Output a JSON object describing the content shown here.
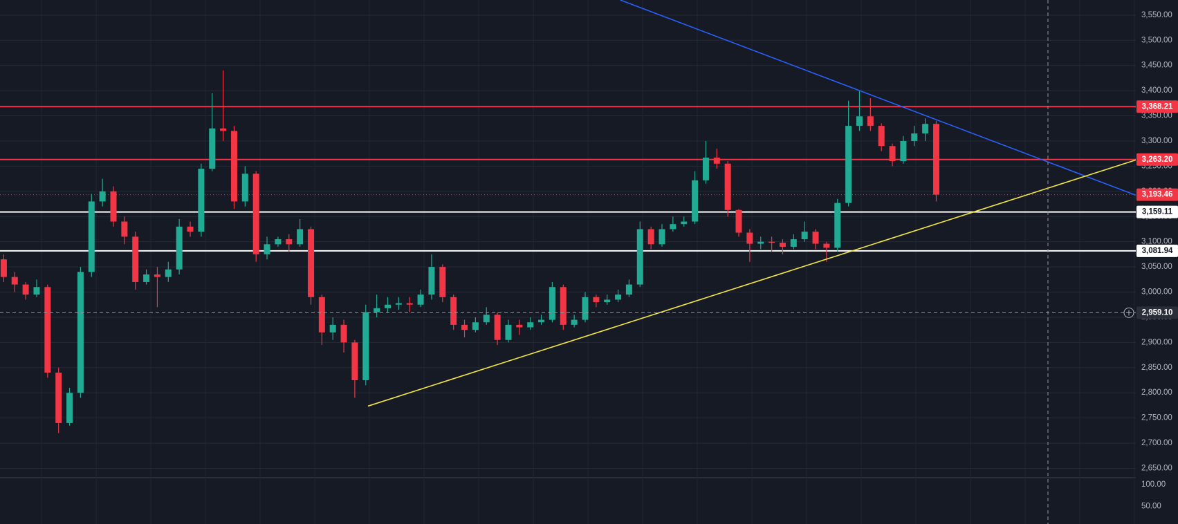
{
  "chart_data": {
    "type": "candlestick",
    "open": [
      3065,
      3030,
      3015,
      2995,
      3010,
      2840,
      2740,
      2800,
      3040,
      3180,
      3200,
      3140,
      3110,
      3020,
      3035,
      3030,
      3045,
      3130,
      3120,
      3245,
      3325,
      3320,
      3180,
      3235,
      3075,
      3095,
      3105,
      3095,
      3125,
      2990,
      2920,
      2935,
      2900,
      2825,
      2960,
      2968,
      2975,
      2978,
      2975,
      2995,
      3050,
      2990,
      2935,
      2925,
      2940,
      2955,
      2905,
      2935,
      2930,
      2940,
      2945,
      3010,
      2935,
      2945,
      2990,
      2980,
      2985,
      2995,
      3015,
      3125,
      3095,
      3125,
      3135,
      3140,
      3222,
      3267,
      3255,
      3163,
      3118,
      3096,
      3100,
      3098,
      3090,
      3105,
      3120,
      3096,
      3088,
      3177,
      3330,
      3349,
      3330,
      3290,
      3260,
      3300,
      3315,
      3334
    ],
    "high": [
      3075,
      3040,
      3020,
      3025,
      3015,
      2850,
      2810,
      3050,
      3195,
      3225,
      3210,
      3150,
      3120,
      3045,
      3050,
      3060,
      3145,
      3140,
      3255,
      3395,
      3440,
      3330,
      3250,
      3240,
      3110,
      3110,
      3115,
      3145,
      3130,
      2995,
      2950,
      2945,
      2905,
      2975,
      2995,
      2990,
      2990,
      2990,
      3005,
      3075,
      3055,
      2995,
      2945,
      2950,
      2970,
      2960,
      2945,
      2945,
      2950,
      2955,
      3020,
      3015,
      2955,
      3000,
      2995,
      2995,
      3005,
      3025,
      3140,
      3130,
      3135,
      3150,
      3150,
      3240,
      3300,
      3285,
      3260,
      3165,
      3125,
      3110,
      3110,
      3105,
      3115,
      3140,
      3125,
      3100,
      3185,
      3380,
      3400,
      3385,
      3335,
      3295,
      3310,
      3330,
      3345,
      3340
    ],
    "low": [
      3020,
      3000,
      2985,
      2990,
      2830,
      2720,
      2735,
      2790,
      3030,
      3170,
      3130,
      3095,
      3005,
      3015,
      2970,
      3020,
      3035,
      3110,
      3110,
      3240,
      3300,
      3165,
      3170,
      3060,
      3065,
      3090,
      3080,
      3090,
      2975,
      2895,
      2905,
      2880,
      2790,
      2815,
      2950,
      2960,
      2965,
      2960,
      2970,
      2985,
      2980,
      2925,
      2910,
      2920,
      2935,
      2895,
      2900,
      2915,
      2925,
      2935,
      2940,
      2925,
      2930,
      2940,
      2970,
      2975,
      2980,
      2990,
      3010,
      3085,
      3090,
      3120,
      3130,
      3135,
      3215,
      3245,
      3150,
      3110,
      3060,
      3085,
      3080,
      3075,
      3085,
      3100,
      3085,
      3060,
      3080,
      3170,
      3320,
      3320,
      3280,
      3250,
      3255,
      3290,
      3300,
      3180
    ],
    "close": [
      3030,
      3015,
      2995,
      3010,
      2840,
      2740,
      2800,
      3040,
      3180,
      3200,
      3140,
      3110,
      3020,
      3035,
      3030,
      3045,
      3130,
      3120,
      3245,
      3325,
      3320,
      3180,
      3235,
      3075,
      3095,
      3105,
      3095,
      3125,
      2990,
      2920,
      2935,
      2900,
      2825,
      2960,
      2968,
      2975,
      2978,
      2975,
      2995,
      3050,
      2990,
      2935,
      2925,
      2940,
      2955,
      2905,
      2935,
      2930,
      2940,
      2945,
      3010,
      2935,
      2945,
      2990,
      2980,
      2985,
      2995,
      3015,
      3125,
      3095,
      3125,
      3135,
      3140,
      3222,
      3267,
      3255,
      3163,
      3118,
      3096,
      3100,
      3098,
      3090,
      3105,
      3120,
      3096,
      3088,
      3177,
      3330,
      3349,
      3330,
      3290,
      3260,
      3300,
      3315,
      3334,
      3193.46
    ],
    "up_color": "#22ab94",
    "down_color": "#f23645",
    "ylim": [
      2632,
      3580
    ],
    "yticks": [
      {
        "value": 2650,
        "label": "2,650.00"
      },
      {
        "value": 2700,
        "label": "2,700.00"
      },
      {
        "value": 2750,
        "label": "2,750.00"
      },
      {
        "value": 2800,
        "label": "2,800.00"
      },
      {
        "value": 2850,
        "label": "2,850.00"
      },
      {
        "value": 2900,
        "label": "2,900.00"
      },
      {
        "value": 2950,
        "label": "2,950.00"
      },
      {
        "value": 3000,
        "label": "3,000.00"
      },
      {
        "value": 3050,
        "label": "3,050.00"
      },
      {
        "value": 3100,
        "label": "3,100.00"
      },
      {
        "value": 3150,
        "label": "3,150.00"
      },
      {
        "value": 3200,
        "label": "3,200.00"
      },
      {
        "value": 3250,
        "label": "3,250.00"
      },
      {
        "value": 3300,
        "label": "3,300.00"
      },
      {
        "value": 3350,
        "label": "3,350.00"
      },
      {
        "value": 3400,
        "label": "3,400.00"
      },
      {
        "value": 3450,
        "label": "3,450.00"
      },
      {
        "value": 3500,
        "label": "3,500.00"
      },
      {
        "value": 3550,
        "label": "3,550.00"
      }
    ],
    "grid": true,
    "price_lines": [
      {
        "value": 3368.21,
        "label": "3,368.21",
        "color": "#f23645"
      },
      {
        "value": 3263.2,
        "label": "3,263.20",
        "color": "#f23645"
      },
      {
        "value": 3159.11,
        "label": "3,159.11",
        "color": "#ffffff"
      },
      {
        "value": 3081.94,
        "label": "3,081.94",
        "color": "#ffffff"
      }
    ],
    "last_price": {
      "value": 3193.46,
      "label": "3,193.46",
      "color": "#f23645"
    },
    "crosshair": {
      "value": 2959.1,
      "label": "2,959.10"
    },
    "trendlines": [
      {
        "color": "#2962ff",
        "points": [
          [
            56.2,
            3580
          ],
          [
            103.2,
            3192.3
          ]
        ]
      },
      {
        "color": "#f5e642",
        "points": [
          [
            33.2,
            2773.6
          ],
          [
            103.2,
            3262.4
          ]
        ]
      }
    ],
    "y2lim": [
      9.4,
      115.6
    ],
    "y2ticks": [
      {
        "value": 100,
        "label": "100.00"
      },
      {
        "value": 50,
        "label": "50.00"
      }
    ]
  }
}
